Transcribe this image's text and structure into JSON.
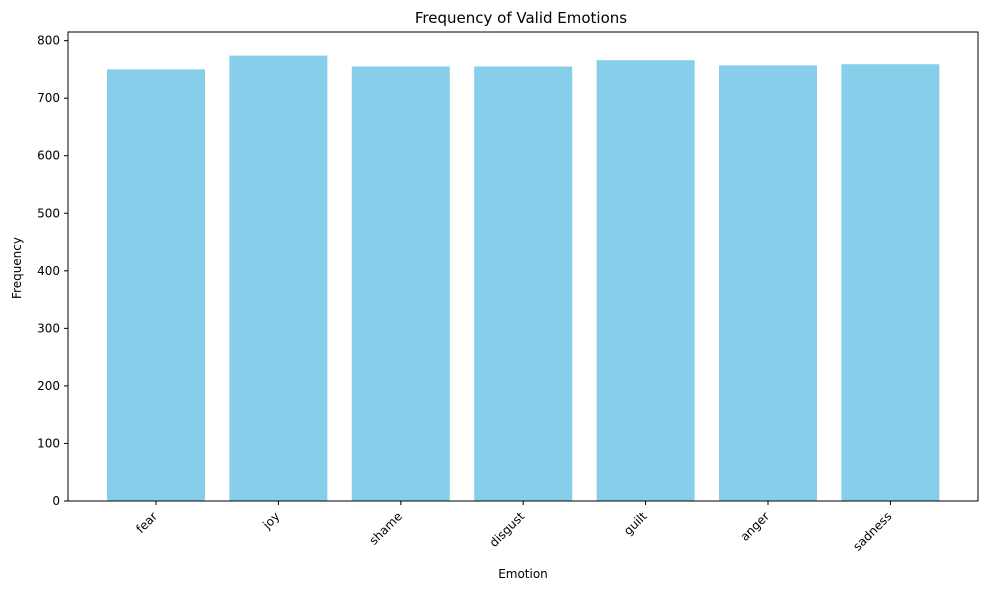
{
  "chart_data": {
    "type": "bar",
    "title": "Frequency of Valid Emotions",
    "xlabel": "Emotion",
    "ylabel": "Frequency",
    "categories": [
      "fear",
      "joy",
      "shame",
      "disgust",
      "guilt",
      "anger",
      "sadness"
    ],
    "values": [
      750,
      774,
      755,
      755,
      766,
      757,
      759
    ],
    "ylim": [
      0,
      815
    ],
    "yticks": [
      0,
      100,
      200,
      300,
      400,
      500,
      600,
      700,
      800
    ],
    "bar_color": "#87ceeb",
    "grid": false,
    "legend": "none"
  }
}
